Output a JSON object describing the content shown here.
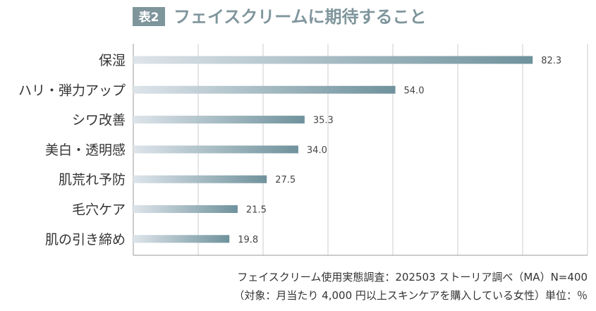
{
  "header": {
    "badge": "表2",
    "title": "フェイスクリームに期待すること"
  },
  "chart_data": {
    "type": "bar",
    "orientation": "horizontal",
    "categories": [
      "保湿",
      "ハリ・弾力アップ",
      "シワ改善",
      "美白・透明感",
      "肌荒れ予防",
      "毛穴ケア",
      "肌の引き締め"
    ],
    "values": [
      82.3,
      54.0,
      35.3,
      34.0,
      27.5,
      21.5,
      19.8
    ],
    "value_labels": [
      "82.3",
      "54.0",
      "35.3",
      "34.0",
      "27.5",
      "21.5",
      "19.8"
    ],
    "xlim": [
      0,
      70
    ],
    "grid": true
  },
  "footer": {
    "source": "フェイスクリーム使用実態調査：202503 ストーリア調べ（MA）N=400",
    "note": "（対象：月当たり 4,000 円以上スキンケアを購入している女性）単位：％"
  },
  "colors": {
    "badge_bg": "#7f959c",
    "title": "#7f959c",
    "bar_start": "#dde4ea",
    "bar_end": "#6f929c",
    "grid": "#cccccc",
    "axis": "#999999"
  }
}
